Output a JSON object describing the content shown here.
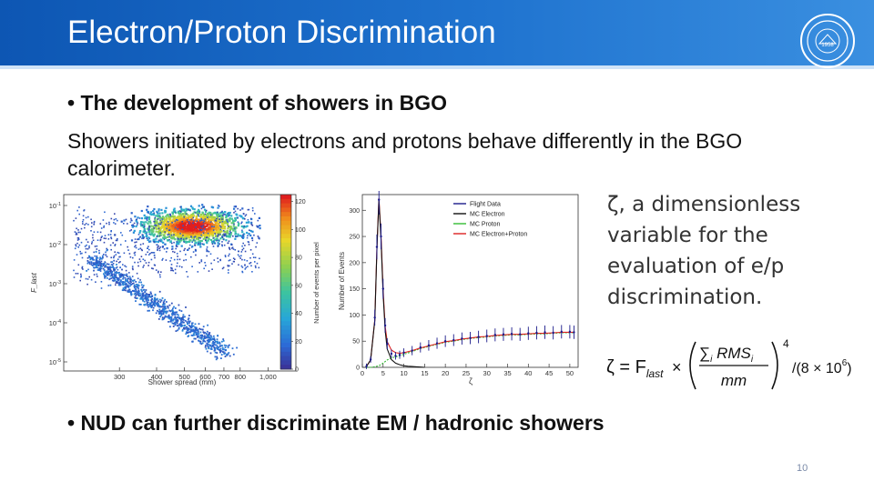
{
  "slide": {
    "title": "Electron/Proton Discrimination",
    "bullet1": "• The development of showers in BGO",
    "paragraph": "Showers initiated by electrons and protons behave differently in the BGO calorimeter.",
    "bullet2": "• NUD can further discriminate EM / hadronic showers",
    "page_number": "10",
    "zeta_description": "ζ, a dimensionless variable for the evaluation of e/p discrimination.",
    "formula": {
      "lhs": "ζ = F",
      "lhs_sub": "last",
      "times": "×",
      "num_sum": "∑",
      "num_sum_sub": "i",
      "num_var": "RMS",
      "num_var_sub": "i",
      "den": "mm",
      "power": "4",
      "tail": "/(8 × 10",
      "tail_exp": "6",
      "tail_close": ")"
    }
  },
  "chart_data": [
    {
      "type": "heatmap",
      "xlabel": "Shower spread (mm)",
      "ylabel": "F_last",
      "xticks": [
        "300",
        "400",
        "500",
        "600",
        "700",
        "800",
        "1,000"
      ],
      "yticks": [
        "10^-1",
        "10^-2",
        "10^-3",
        "10^-4",
        "10^-5"
      ],
      "colorbar_label": "Number of events per pixel",
      "colorbar_ticks": [
        0,
        20,
        40,
        60,
        80,
        100,
        120
      ],
      "colorbar_range": [
        0,
        125
      ],
      "clusters": [
        {
          "name": "electron band",
          "x_center": 620,
          "log10_y_center": -1.4,
          "peak_events": 120
        },
        {
          "name": "proton band",
          "x_range": [
            380,
            700
          ],
          "log10_y_range": [
            -2.3,
            -4.2
          ]
        }
      ]
    },
    {
      "type": "line",
      "xlabel": "ζ",
      "ylabel": "Number of Events",
      "xticks": [
        0,
        5,
        10,
        15,
        20,
        25,
        30,
        35,
        40,
        45,
        50
      ],
      "yticks": [
        0,
        50,
        100,
        150,
        200,
        250,
        300
      ],
      "xlim": [
        0,
        52
      ],
      "ylim": [
        0,
        330
      ],
      "legend": [
        "Flight Data",
        "MC Electron",
        "MC Proton",
        "MC Electron+Proton"
      ],
      "legend_position": "top-right",
      "series": [
        {
          "name": "Flight Data",
          "color": "#1a1a8a",
          "x": [
            1,
            2,
            3,
            3.5,
            4,
            4.5,
            5,
            5.5,
            6,
            7,
            8,
            9,
            10,
            12,
            14,
            16,
            18,
            20,
            22,
            24,
            26,
            28,
            30,
            32,
            34,
            36,
            38,
            40,
            42,
            44,
            46,
            48,
            50,
            51
          ],
          "y": [
            2,
            15,
            95,
            230,
            320,
            250,
            150,
            80,
            45,
            26,
            22,
            24,
            28,
            32,
            38,
            42,
            46,
            50,
            52,
            55,
            56,
            58,
            60,
            62,
            63,
            64,
            63,
            65,
            66,
            67,
            66,
            68,
            68,
            67
          ]
        },
        {
          "name": "MC Electron",
          "color": "#111111",
          "x": [
            1,
            2,
            3,
            3.5,
            4,
            4.5,
            5,
            5.5,
            6,
            7,
            8,
            9,
            10,
            11,
            12,
            13,
            14,
            15
          ],
          "y": [
            2,
            14,
            90,
            225,
            320,
            245,
            140,
            70,
            35,
            15,
            8,
            5,
            3,
            2,
            1.5,
            1,
            0.5,
            0
          ]
        },
        {
          "name": "MC Proton",
          "color": "#33bb33",
          "x": [
            1,
            2,
            3,
            4,
            5,
            6,
            7,
            8,
            9,
            10,
            12,
            14,
            16,
            18,
            20,
            22,
            24,
            26,
            28,
            30,
            32,
            34,
            36,
            38,
            40,
            42,
            44,
            46,
            48,
            50,
            51
          ],
          "y": [
            0,
            0,
            1,
            3,
            8,
            14,
            18,
            20,
            22,
            25,
            30,
            36,
            40,
            44,
            48,
            50,
            53,
            55,
            57,
            58,
            60,
            61,
            62,
            62,
            63,
            64,
            64,
            65,
            66,
            66,
            66
          ]
        },
        {
          "name": "MC Electron+Proton",
          "color": "#dd2222",
          "x": [
            1,
            2,
            3,
            3.5,
            4,
            4.5,
            5,
            5.5,
            6,
            7,
            8,
            9,
            10,
            12,
            14,
            16,
            18,
            20,
            22,
            24,
            26,
            28,
            30,
            32,
            34,
            36,
            38,
            40,
            42,
            44,
            46,
            48,
            50,
            51
          ],
          "y": [
            2,
            14,
            91,
            228,
            323,
            252,
            148,
            78,
            49,
            33,
            28,
            27,
            28,
            32,
            37,
            41,
            45,
            49,
            51,
            54,
            56,
            58,
            59,
            61,
            62,
            63,
            63,
            64,
            65,
            65,
            66,
            67,
            67,
            67
          ]
        }
      ]
    }
  ],
  "colors": {
    "title_bar": "#1565c0",
    "text": "#111111"
  }
}
